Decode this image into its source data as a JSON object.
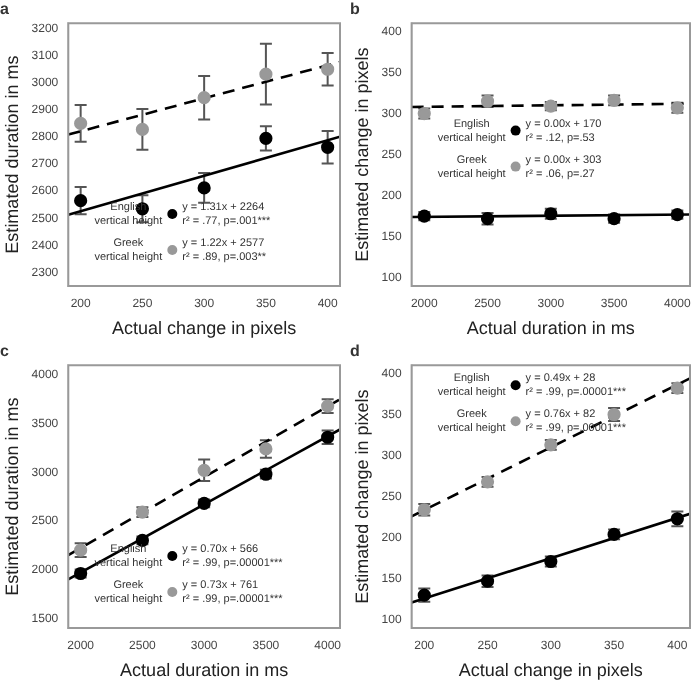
{
  "chart_data": [
    {
      "type": "scatter",
      "title": "a",
      "xlabel": "Actual change in pixels",
      "ylabel": "Estimated duration in ms",
      "xlim": [
        190,
        410
      ],
      "xticks": [
        200,
        250,
        300,
        350,
        400
      ],
      "ylim": [
        2250,
        3220
      ],
      "yticks": [
        2300,
        2400,
        2500,
        2600,
        2700,
        2800,
        2900,
        3000,
        3100,
        3200
      ],
      "grid": false,
      "legend": "bottom left",
      "x": [
        200,
        250,
        300,
        350,
        400
      ],
      "series": [
        {
          "name": "English vertical height",
          "color": "#000000",
          "marker": "circle",
          "values": [
            2565,
            2535,
            2612,
            2795,
            2762
          ],
          "errors": [
            50,
            50,
            55,
            45,
            60
          ]
        },
        {
          "name": "Greek vertical height",
          "color": "#999999",
          "marker": "circle",
          "values": [
            2850,
            2828,
            2945,
            3032,
            3050
          ],
          "errors": [
            68,
            75,
            80,
            112,
            60
          ]
        },
        {
          "type": "line",
          "color": "#000000",
          "line_style": "solid",
          "marker": "none",
          "x": [
            190,
            410
          ],
          "values": [
            2513,
            2801
          ]
        },
        {
          "type": "line",
          "color": "#000000",
          "line_style": "dashed",
          "marker": "none",
          "x": [
            190,
            410
          ],
          "values": [
            2809,
            3077
          ]
        }
      ],
      "annotations": [
        "y = 1.31x + 2264",
        "r² = .77, p=.001***",
        "y = 1.22x + 2577",
        "r² = .89, p=.003**"
      ]
    },
    {
      "type": "scatter",
      "title": "b",
      "xlabel": "Actual duration in ms",
      "ylabel": "Estimated change in pixels",
      "xlim": [
        1900,
        4100
      ],
      "xticks": [
        2000,
        2500,
        3000,
        3500,
        4000
      ],
      "ylim": [
        90,
        410
      ],
      "yticks": [
        100,
        150,
        200,
        250,
        300,
        350,
        400
      ],
      "grid": false,
      "legend": "left",
      "x": [
        2000,
        2500,
        3000,
        3500,
        4000
      ],
      "series": [
        {
          "name": "English vertical height",
          "color": "#000000",
          "marker": "circle",
          "values": [
            175,
            172,
            178,
            172,
            177
          ],
          "errors": [
            5,
            7,
            6,
            5,
            5
          ]
        },
        {
          "name": "Greek vertical height",
          "color": "#999999",
          "marker": "circle",
          "values": [
            300,
            315,
            309,
            316,
            307
          ],
          "errors": [
            6,
            7,
            5,
            6,
            6
          ]
        },
        {
          "type": "line",
          "color": "#000000",
          "line_style": "solid",
          "marker": "none",
          "x": [
            1900,
            4100
          ],
          "values": [
            174,
            177
          ]
        },
        {
          "type": "line",
          "color": "#000000",
          "line_style": "dashed",
          "marker": "none",
          "x": [
            1900,
            4100
          ],
          "values": [
            308,
            312
          ]
        }
      ],
      "annotations": [
        "y = 0.00x + 170",
        "r² = .12, p=.53",
        "y = 0.00x + 303",
        "r² = .06, p=.27"
      ]
    },
    {
      "type": "scatter",
      "title": "c",
      "xlabel": "Actual duration in ms",
      "ylabel": "Estimated duration in ms",
      "xlim": [
        1900,
        4100
      ],
      "xticks": [
        2000,
        2500,
        3000,
        3500,
        4000
      ],
      "ylim": [
        1400,
        4100
      ],
      "yticks": [
        1500,
        2000,
        2500,
        3000,
        3500,
        4000
      ],
      "grid": false,
      "legend": "bottom left",
      "x": [
        2000,
        2500,
        3000,
        3500,
        4000
      ],
      "series": [
        {
          "name": "English vertical height",
          "color": "#000000",
          "marker": "circle",
          "values": [
            1960,
            2300,
            2680,
            2980,
            3360
          ],
          "errors": [
            40,
            40,
            40,
            45,
            70
          ]
        },
        {
          "name": "Greek vertical height",
          "color": "#999999",
          "marker": "circle",
          "values": [
            2200,
            2590,
            3020,
            3240,
            3680
          ],
          "errors": [
            70,
            50,
            110,
            90,
            70
          ]
        },
        {
          "type": "line",
          "color": "#000000",
          "line_style": "solid",
          "marker": "none",
          "x": [
            1900,
            4100
          ],
          "values": [
            1900,
            3440
          ]
        },
        {
          "type": "line",
          "color": "#000000",
          "line_style": "dashed",
          "marker": "none",
          "x": [
            1900,
            4100
          ],
          "values": [
            2150,
            3750
          ]
        }
      ],
      "annotations": [
        "y = 0.70x + 566",
        "r² = .99, p=.00001***",
        "y = 0.73x + 761",
        "r² = .99, p=.00001***"
      ]
    },
    {
      "type": "scatter",
      "title": "d",
      "xlabel": "Actual change in pixels",
      "ylabel": "Estimated change in pixels",
      "xlim": [
        190,
        410
      ],
      "xticks": [
        200,
        250,
        300,
        350,
        400
      ],
      "ylim": [
        90,
        410
      ],
      "yticks": [
        100,
        150,
        200,
        250,
        300,
        350,
        400
      ],
      "grid": false,
      "legend": "top left",
      "x": [
        200,
        250,
        300,
        350,
        400
      ],
      "series": [
        {
          "name": "English vertical height",
          "color": "#000000",
          "marker": "circle",
          "values": [
            130,
            147,
            171,
            204,
            223
          ],
          "errors": [
            8,
            7,
            6,
            6,
            9
          ]
        },
        {
          "name": "Greek vertical height",
          "color": "#999999",
          "marker": "circle",
          "values": [
            234,
            268,
            313,
            350,
            382
          ],
          "errors": [
            7,
            6,
            6,
            8,
            6
          ]
        },
        {
          "type": "line",
          "color": "#000000",
          "line_style": "solid",
          "marker": "none",
          "x": [
            190,
            410
          ],
          "values": [
            121,
            229
          ]
        },
        {
          "type": "line",
          "color": "#000000",
          "line_style": "dashed",
          "marker": "none",
          "x": [
            190,
            410
          ],
          "values": [
            226,
            394
          ]
        }
      ],
      "annotations": [
        "y = 0.49x + 28",
        "r² = .99, p=.00001***",
        "y = 0.76x + 82",
        "r² = .99, p=.00001***"
      ]
    }
  ]
}
